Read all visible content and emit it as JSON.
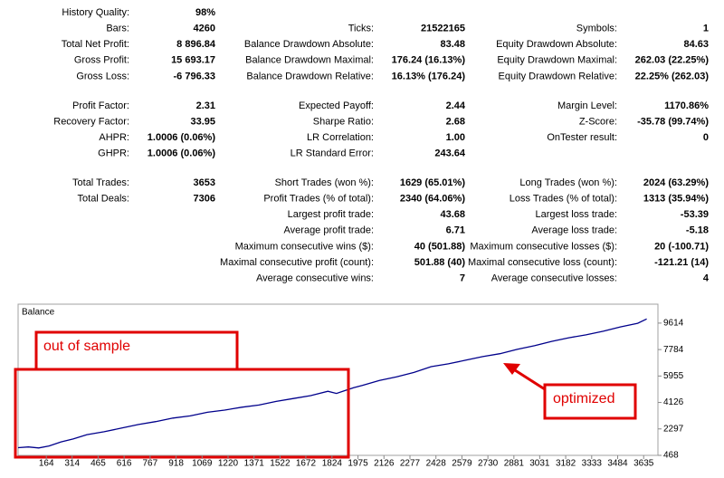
{
  "report": {
    "sections": [
      {
        "rows": [
          [
            {
              "label": "History Quality:",
              "value": "98%"
            },
            null,
            null
          ],
          [
            {
              "label": "Bars:",
              "value": "4260"
            },
            {
              "label": "Ticks:",
              "value": "21522165"
            },
            {
              "label": "Symbols:",
              "value": "1"
            }
          ],
          [
            {
              "label": "Total Net Profit:",
              "value": "8 896.84"
            },
            {
              "label": "Balance Drawdown Absolute:",
              "value": "83.48"
            },
            {
              "label": "Equity Drawdown Absolute:",
              "value": "84.63"
            }
          ],
          [
            {
              "label": "Gross Profit:",
              "value": "15 693.17"
            },
            {
              "label": "Balance Drawdown Maximal:",
              "value": "176.24 (16.13%)"
            },
            {
              "label": "Equity Drawdown Maximal:",
              "value": "262.03 (22.25%)"
            }
          ],
          [
            {
              "label": "Gross Loss:",
              "value": "-6 796.33"
            },
            {
              "label": "Balance Drawdown Relative:",
              "value": "16.13% (176.24)"
            },
            {
              "label": "Equity Drawdown Relative:",
              "value": "22.25% (262.03)"
            }
          ]
        ]
      },
      {
        "rows": [
          [
            {
              "label": "Profit Factor:",
              "value": "2.31"
            },
            {
              "label": "Expected Payoff:",
              "value": "2.44"
            },
            {
              "label": "Margin Level:",
              "value": "1170.86%"
            }
          ],
          [
            {
              "label": "Recovery Factor:",
              "value": "33.95"
            },
            {
              "label": "Sharpe Ratio:",
              "value": "2.68"
            },
            {
              "label": "Z-Score:",
              "value": "-35.78 (99.74%)"
            }
          ],
          [
            {
              "label": "AHPR:",
              "value": "1.0006 (0.06%)"
            },
            {
              "label": "LR Correlation:",
              "value": "1.00"
            },
            {
              "label": "OnTester result:",
              "value": "0"
            }
          ],
          [
            {
              "label": "GHPR:",
              "value": "1.0006 (0.06%)"
            },
            {
              "label": "LR Standard Error:",
              "value": "243.64"
            },
            null
          ]
        ]
      },
      {
        "rows": [
          [
            {
              "label": "Total Trades:",
              "value": "3653"
            },
            {
              "label": "Short Trades (won %):",
              "value": "1629 (65.01%)"
            },
            {
              "label": "Long Trades (won %):",
              "value": "2024 (63.29%)"
            }
          ],
          [
            {
              "label": "Total Deals:",
              "value": "7306"
            },
            {
              "label": "Profit Trades (% of total):",
              "value": "2340 (64.06%)"
            },
            {
              "label": "Loss Trades (% of total):",
              "value": "1313 (35.94%)"
            }
          ],
          [
            null,
            {
              "label": "Largest profit trade:",
              "value": "43.68"
            },
            {
              "label": "Largest loss trade:",
              "value": "-53.39"
            }
          ],
          [
            null,
            {
              "label": "Average profit trade:",
              "value": "6.71"
            },
            {
              "label": "Average loss trade:",
              "value": "-5.18"
            }
          ],
          [
            null,
            {
              "label": "Maximum consecutive wins ($):",
              "value": "40 (501.88)"
            },
            {
              "label": "Maximum consecutive losses ($):",
              "value": "20 (-100.71)"
            }
          ],
          [
            null,
            {
              "label": "Maximal consecutive profit (count):",
              "value": "501.88 (40)"
            },
            {
              "label": "Maximal consecutive loss (count):",
              "value": "-121.21 (14)"
            }
          ],
          [
            null,
            {
              "label": "Average consecutive wins:",
              "value": "7"
            },
            {
              "label": "Average consecutive losses:",
              "value": "4"
            }
          ]
        ]
      }
    ]
  },
  "chart_data": {
    "type": "line",
    "title": "Balance",
    "x": [
      0,
      60,
      120,
      180,
      250,
      320,
      400,
      500,
      600,
      700,
      800,
      900,
      1000,
      1100,
      1200,
      1300,
      1400,
      1500,
      1600,
      1700,
      1800,
      1850,
      1900,
      1950,
      2000,
      2100,
      2200,
      2300,
      2400,
      2500,
      2600,
      2700,
      2800,
      2900,
      3000,
      3100,
      3200,
      3300,
      3400,
      3500,
      3600,
      3653
    ],
    "series": [
      {
        "color": "#00008b",
        "values": [
          1000,
          1050,
          980,
          1120,
          1400,
          1600,
          1900,
          2100,
          2350,
          2600,
          2800,
          3050,
          3200,
          3450,
          3600,
          3800,
          3950,
          4200,
          4400,
          4600,
          4900,
          4750,
          4950,
          5150,
          5300,
          5650,
          5900,
          6200,
          6600,
          6800,
          7050,
          7300,
          7500,
          7800,
          8050,
          8350,
          8600,
          8800,
          9050,
          9350,
          9600,
          9900
        ]
      }
    ],
    "xlim": [
      0,
      3718
    ],
    "ylim": [
      468,
      10672
    ],
    "xticks": [
      164,
      314,
      465,
      616,
      767,
      918,
      1069,
      1220,
      1371,
      1522,
      1672,
      1824,
      1975,
      2126,
      2277,
      2428,
      2579,
      2730,
      2881,
      3031,
      3182,
      3333,
      3484,
      3635
    ],
    "yticks": [
      468,
      2297,
      4126,
      5955,
      7784,
      9614
    ]
  },
  "annotations": [
    "out of sample",
    "optimized"
  ]
}
